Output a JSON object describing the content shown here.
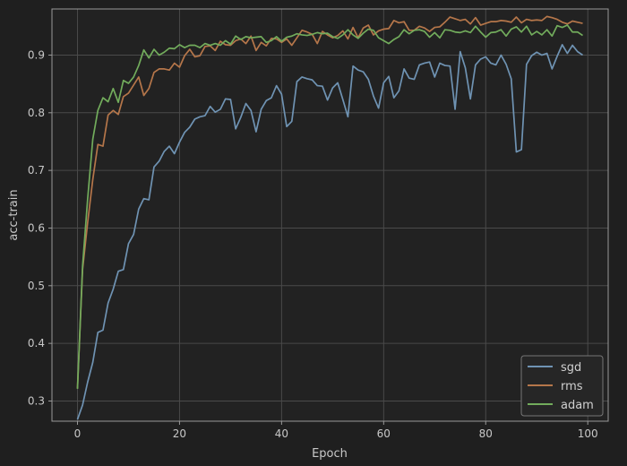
{
  "chart_data": {
    "type": "line",
    "xlabel": "Epoch",
    "ylabel": "acc-train",
    "xlim": [
      -5,
      104
    ],
    "ylim": [
      0.265,
      0.98
    ],
    "xticks": [
      0,
      20,
      40,
      60,
      80,
      100
    ],
    "yticks": [
      0.3,
      0.4,
      0.5,
      0.6,
      0.7,
      0.8,
      0.9
    ],
    "xtick_labels": [
      "0",
      "20",
      "40",
      "60",
      "80",
      "100"
    ],
    "ytick_labels": [
      "0.3",
      "0.4",
      "0.5",
      "0.6",
      "0.7",
      "0.8",
      "0.9"
    ],
    "grid": true,
    "legend_position": "lower-right",
    "background": "#222222",
    "grid_color": "#4a4a4a",
    "spine_color": "#9a9a9a",
    "x": [
      0,
      1,
      2,
      3,
      4,
      5,
      6,
      7,
      8,
      9,
      10,
      11,
      12,
      13,
      14,
      15,
      16,
      17,
      18,
      19,
      20,
      21,
      22,
      23,
      24,
      25,
      26,
      27,
      28,
      29,
      30,
      31,
      32,
      33,
      34,
      35,
      36,
      37,
      38,
      39,
      40,
      41,
      42,
      43,
      44,
      45,
      46,
      47,
      48,
      49,
      50,
      51,
      52,
      53,
      54,
      55,
      56,
      57,
      58,
      59,
      60,
      61,
      62,
      63,
      64,
      65,
      66,
      67,
      68,
      69,
      70,
      71,
      72,
      73,
      74,
      75,
      76,
      77,
      78,
      79,
      80,
      81,
      82,
      83,
      84,
      85,
      86,
      87,
      88,
      89,
      90,
      91,
      92,
      93,
      94,
      95,
      96,
      97,
      98,
      99
    ],
    "series": [
      {
        "name": "sgd",
        "color": "#6f93b3",
        "values": [
          0.268,
          0.293,
          0.333,
          0.367,
          0.419,
          0.423,
          0.47,
          0.494,
          0.525,
          0.528,
          0.573,
          0.589,
          0.633,
          0.651,
          0.649,
          0.706,
          0.716,
          0.733,
          0.742,
          0.729,
          0.749,
          0.766,
          0.775,
          0.789,
          0.793,
          0.795,
          0.811,
          0.801,
          0.806,
          0.824,
          0.823,
          0.772,
          0.792,
          0.816,
          0.804,
          0.767,
          0.806,
          0.821,
          0.826,
          0.847,
          0.832,
          0.776,
          0.785,
          0.854,
          0.862,
          0.859,
          0.857,
          0.847,
          0.846,
          0.822,
          0.843,
          0.852,
          0.823,
          0.793,
          0.881,
          0.874,
          0.871,
          0.858,
          0.829,
          0.808,
          0.852,
          0.863,
          0.826,
          0.838,
          0.876,
          0.86,
          0.858,
          0.883,
          0.886,
          0.888,
          0.862,
          0.886,
          0.882,
          0.881,
          0.806,
          0.906,
          0.878,
          0.824,
          0.883,
          0.893,
          0.897,
          0.886,
          0.883,
          0.9,
          0.884,
          0.859,
          0.732,
          0.736,
          0.884,
          0.899,
          0.905,
          0.9,
          0.903,
          0.876,
          0.898,
          0.918,
          0.903,
          0.917,
          0.906,
          0.9
        ]
      },
      {
        "name": "rms",
        "color": "#b5764a",
        "values": [
          0.322,
          0.528,
          0.61,
          0.684,
          0.745,
          0.742,
          0.796,
          0.804,
          0.797,
          0.828,
          0.834,
          0.848,
          0.862,
          0.83,
          0.842,
          0.87,
          0.876,
          0.876,
          0.874,
          0.886,
          0.879,
          0.899,
          0.91,
          0.897,
          0.899,
          0.915,
          0.916,
          0.908,
          0.924,
          0.918,
          0.917,
          0.925,
          0.928,
          0.92,
          0.933,
          0.908,
          0.922,
          0.916,
          0.929,
          0.928,
          0.922,
          0.928,
          0.917,
          0.93,
          0.943,
          0.94,
          0.936,
          0.92,
          0.941,
          0.935,
          0.93,
          0.934,
          0.942,
          0.928,
          0.948,
          0.93,
          0.947,
          0.952,
          0.935,
          0.942,
          0.945,
          0.946,
          0.96,
          0.956,
          0.958,
          0.943,
          0.943,
          0.95,
          0.947,
          0.941,
          0.948,
          0.949,
          0.957,
          0.966,
          0.963,
          0.96,
          0.962,
          0.954,
          0.965,
          0.952,
          0.955,
          0.958,
          0.958,
          0.96,
          0.959,
          0.957,
          0.966,
          0.956,
          0.962,
          0.96,
          0.961,
          0.96,
          0.967,
          0.965,
          0.962,
          0.957,
          0.954,
          0.959,
          0.957,
          0.955
        ]
      },
      {
        "name": "adam",
        "color": "#72ac5c",
        "values": [
          0.321,
          0.534,
          0.651,
          0.754,
          0.804,
          0.826,
          0.819,
          0.842,
          0.818,
          0.856,
          0.851,
          0.862,
          0.882,
          0.909,
          0.895,
          0.91,
          0.9,
          0.905,
          0.912,
          0.911,
          0.918,
          0.913,
          0.917,
          0.917,
          0.913,
          0.92,
          0.917,
          0.92,
          0.917,
          0.925,
          0.919,
          0.933,
          0.927,
          0.932,
          0.93,
          0.931,
          0.932,
          0.922,
          0.925,
          0.932,
          0.924,
          0.931,
          0.933,
          0.937,
          0.935,
          0.934,
          0.936,
          0.939,
          0.937,
          0.938,
          0.932,
          0.929,
          0.935,
          0.944,
          0.935,
          0.929,
          0.938,
          0.945,
          0.943,
          0.93,
          0.925,
          0.92,
          0.927,
          0.932,
          0.944,
          0.937,
          0.943,
          0.944,
          0.941,
          0.931,
          0.939,
          0.93,
          0.944,
          0.943,
          0.94,
          0.939,
          0.942,
          0.939,
          0.95,
          0.94,
          0.931,
          0.939,
          0.94,
          0.944,
          0.933,
          0.945,
          0.949,
          0.94,
          0.95,
          0.935,
          0.941,
          0.935,
          0.944,
          0.933,
          0.951,
          0.948,
          0.952,
          0.94,
          0.94,
          0.934
        ]
      }
    ]
  }
}
